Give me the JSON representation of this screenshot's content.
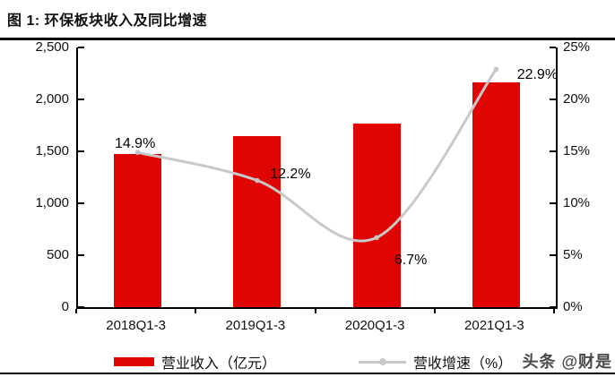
{
  "header": {
    "title": "图 1: 环保板块收入及同比增速"
  },
  "watermark": "头条 @财是",
  "colors": {
    "bar": "#e00403",
    "line": "#c9c9c9",
    "axis": "#000000"
  },
  "legend": {
    "items": [
      {
        "label": "营业收入（亿元）",
        "swatch": "bar",
        "color": "#e00403"
      },
      {
        "label": "营收增速（%）",
        "swatch": "line",
        "color": "#c9c9c9"
      }
    ]
  },
  "chart_data": {
    "type": "bar",
    "title": "环保板块收入及同比增速",
    "categories": [
      "2018Q1-3",
      "2019Q1-3",
      "2020Q1-3",
      "2021Q1-3"
    ],
    "series": [
      {
        "name": "营业收入（亿元）",
        "type": "bar",
        "axis": "left",
        "color": "#e00403",
        "values": [
          1470,
          1645,
          1770,
          2165
        ]
      },
      {
        "name": "营收增速（%）",
        "type": "line",
        "axis": "right",
        "color": "#c9c9c9",
        "values": [
          14.9,
          12.2,
          6.7,
          22.9
        ],
        "labels": [
          "14.9%",
          "12.2%",
          "6.7%",
          "22.9%"
        ]
      }
    ],
    "left_axis": {
      "min": 0,
      "max": 2500,
      "ticks": [
        "2,500",
        "2,000",
        "1,500",
        "1,000",
        "500",
        "0"
      ]
    },
    "right_axis": {
      "min": 0,
      "max": 25,
      "ticks": [
        "25%",
        "20%",
        "15%",
        "10%",
        "5%",
        "0%"
      ]
    },
    "grid": false,
    "legend_position": "bottom"
  }
}
